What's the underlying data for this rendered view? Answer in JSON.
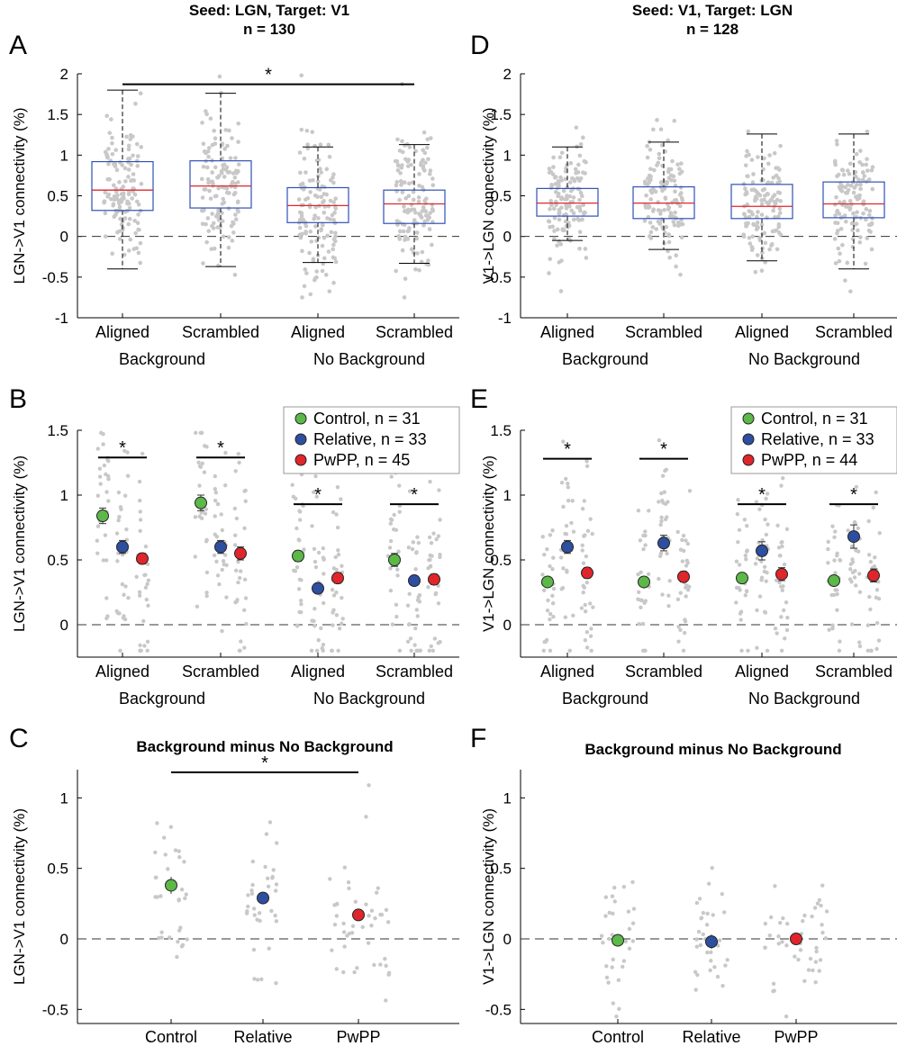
{
  "colors": {
    "control": "#5cb848",
    "relative": "#2e4fa0",
    "pwpp": "#e0262b",
    "box": "#3050b8",
    "median": "#e0262b",
    "dot": "#c8c8c8"
  },
  "panels": [
    {
      "id": "A",
      "letter": "A",
      "title": "Seed: LGN, Target: V1",
      "subtitle": "n = 130",
      "ylabel": "LGN->V1 connectivity (%)"
    },
    {
      "id": "D",
      "letter": "D",
      "title": "Seed: V1, Target: LGN",
      "subtitle": "n = 128",
      "ylabel": "V1->LGN connectivity (%)"
    },
    {
      "id": "B",
      "letter": "B",
      "title": "",
      "ylabel": "LGN->V1 connectivity (%)"
    },
    {
      "id": "E",
      "letter": "E",
      "title": "",
      "ylabel": "V1->LGN connectivity (%)"
    },
    {
      "id": "C",
      "letter": "C",
      "title": "Background minus No Background",
      "ylabel": "LGN->V1 connectivity (%)"
    },
    {
      "id": "F",
      "letter": "F",
      "title": "Background minus No Background",
      "ylabel": "V1->LGN connectivity (%)"
    }
  ],
  "condition_labels": [
    "Aligned",
    "Scrambled",
    "Aligned",
    "Scrambled"
  ],
  "condition_labels_right_panel": [
    "Aligned",
    "Scrambled",
    "Aligned",
    "Scrambled"
  ],
  "group_labels": [
    "Background",
    "No Background"
  ],
  "group_x_labels": [
    "Control",
    "Relative",
    "PwPP"
  ],
  "significance_marker": "*",
  "legend_B": [
    "Control, n = 31",
    "Relative, n = 33",
    "PwPP, n = 45"
  ],
  "legend_E": [
    "Control, n = 31",
    "Relative, n = 33",
    "PwPP, n = 44"
  ],
  "ticks": {
    "A": [
      "2",
      "1.5",
      "1",
      "0.5",
      "0",
      "-0.5",
      "-1"
    ],
    "B": [
      "1.5",
      "1",
      "0.5",
      "0"
    ],
    "C": [
      "1",
      "0.5",
      "0",
      "-0.5"
    ]
  },
  "chart_data": [
    {
      "panel": "A",
      "type": "box",
      "title": "Seed: LGN, Target: V1",
      "subtitle": "n = 130",
      "ylabel": "LGN->V1 connectivity (%)",
      "ylim": [
        -1,
        2
      ],
      "categories": [
        "Aligned",
        "Scrambled",
        "Aligned",
        "Scrambled"
      ],
      "groups": [
        "Background",
        "No Background"
      ],
      "boxes": [
        {
          "whisker_low": -0.4,
          "q1": 0.32,
          "median": 0.57,
          "q3": 0.92,
          "whisker_high": 1.8
        },
        {
          "whisker_low": -0.37,
          "q1": 0.35,
          "median": 0.62,
          "q3": 0.93,
          "whisker_high": 1.76
        },
        {
          "whisker_low": -0.32,
          "q1": 0.17,
          "median": 0.38,
          "q3": 0.6,
          "whisker_high": 1.1
        },
        {
          "whisker_low": -0.33,
          "q1": 0.16,
          "median": 0.4,
          "q3": 0.57,
          "whisker_high": 1.13
        }
      ],
      "significance": [
        {
          "from": 0,
          "to": 3,
          "y": 2.0
        }
      ]
    },
    {
      "panel": "D",
      "type": "box",
      "title": "Seed: V1, Target: LGN",
      "subtitle": "n = 128",
      "ylabel": "V1->LGN connectivity (%)",
      "ylim": [
        -1,
        2
      ],
      "categories": [
        "Aligned",
        "Scrambled",
        "Aligned",
        "Scrambled"
      ],
      "groups": [
        "Background",
        "No Background"
      ],
      "boxes": [
        {
          "whisker_low": -0.05,
          "q1": 0.25,
          "median": 0.41,
          "q3": 0.59,
          "whisker_high": 1.1
        },
        {
          "whisker_low": -0.16,
          "q1": 0.22,
          "median": 0.41,
          "q3": 0.61,
          "whisker_high": 1.16
        },
        {
          "whisker_low": -0.3,
          "q1": 0.22,
          "median": 0.37,
          "q3": 0.64,
          "whisker_high": 1.26
        },
        {
          "whisker_low": -0.4,
          "q1": 0.23,
          "median": 0.4,
          "q3": 0.67,
          "whisker_high": 1.26
        }
      ],
      "significance": []
    },
    {
      "panel": "B",
      "type": "scatter",
      "ylabel": "LGN->V1 connectivity (%)",
      "ylim": [
        -0.25,
        1.5
      ],
      "categories": [
        "Aligned",
        "Scrambled",
        "Aligned",
        "Scrambled"
      ],
      "groups": [
        "Background",
        "No Background"
      ],
      "series": [
        {
          "name": "Control, n = 31",
          "means": [
            0.84,
            0.94,
            0.53,
            0.5
          ],
          "errors": [
            0.06,
            0.06,
            0.04,
            0.05
          ]
        },
        {
          "name": "Relative, n = 33",
          "means": [
            0.6,
            0.6,
            0.28,
            0.34
          ],
          "errors": [
            0.05,
            0.05,
            0.03,
            0.03
          ]
        },
        {
          "name": "PwPP, n = 45",
          "means": [
            0.51,
            0.55,
            0.36,
            0.35
          ],
          "errors": [
            0.04,
            0.05,
            0.04,
            0.04
          ]
        }
      ],
      "significance": [
        {
          "condition": 0,
          "y": 1.29
        },
        {
          "condition": 1,
          "y": 1.29
        },
        {
          "condition": 2,
          "y": 0.93
        },
        {
          "condition": 3,
          "y": 0.93
        }
      ]
    },
    {
      "panel": "E",
      "type": "scatter",
      "ylabel": "V1->LGN connectivity (%)",
      "ylim": [
        -0.25,
        1.5
      ],
      "categories": [
        "Aligned",
        "Scrambled",
        "Aligned",
        "Scrambled"
      ],
      "groups": [
        "Background",
        "No Background"
      ],
      "series": [
        {
          "name": "Control, n = 31",
          "means": [
            0.33,
            0.33,
            0.36,
            0.34
          ],
          "errors": [
            0.03,
            0.03,
            0.03,
            0.03
          ]
        },
        {
          "name": "Relative, n = 33",
          "means": [
            0.6,
            0.63,
            0.57,
            0.68
          ],
          "errors": [
            0.05,
            0.06,
            0.07,
            0.09
          ]
        },
        {
          "name": "PwPP, n = 44",
          "means": [
            0.4,
            0.37,
            0.39,
            0.38
          ],
          "errors": [
            0.04,
            0.04,
            0.05,
            0.05
          ]
        }
      ],
      "significance": [
        {
          "condition": 0,
          "y": 1.28
        },
        {
          "condition": 1,
          "y": 1.28
        },
        {
          "condition": 2,
          "y": 0.93
        },
        {
          "condition": 3,
          "y": 0.93
        }
      ]
    },
    {
      "panel": "C",
      "type": "scatter",
      "title": "Background minus No Background",
      "ylabel": "LGN->V1 connectivity (%)",
      "ylim": [
        -0.6,
        1.2
      ],
      "categories": [
        "Control",
        "Relative",
        "PwPP"
      ],
      "series": [
        {
          "name": "Control",
          "means": [
            0.38
          ],
          "errors": [
            0.06
          ]
        },
        {
          "name": "Relative",
          "means": [
            0.29
          ],
          "errors": [
            0.03
          ]
        },
        {
          "name": "PwPP",
          "means": [
            0.17
          ],
          "errors": [
            0.03
          ]
        }
      ],
      "significance": [
        {
          "from": 0,
          "to": 2,
          "y": 1.2
        }
      ]
    },
    {
      "panel": "F",
      "type": "scatter",
      "title": "Background minus No Background",
      "ylabel": "V1->LGN connectivity (%)",
      "ylim": [
        -0.6,
        1.2
      ],
      "categories": [
        "Control",
        "Relative",
        "PwPP"
      ],
      "series": [
        {
          "name": "Control",
          "means": [
            -0.01
          ],
          "errors": [
            0.03
          ]
        },
        {
          "name": "Relative",
          "means": [
            -0.02
          ],
          "errors": [
            0.05
          ]
        },
        {
          "name": "PwPP",
          "means": [
            0.0
          ],
          "errors": [
            0.04
          ]
        }
      ],
      "significance": []
    }
  ]
}
